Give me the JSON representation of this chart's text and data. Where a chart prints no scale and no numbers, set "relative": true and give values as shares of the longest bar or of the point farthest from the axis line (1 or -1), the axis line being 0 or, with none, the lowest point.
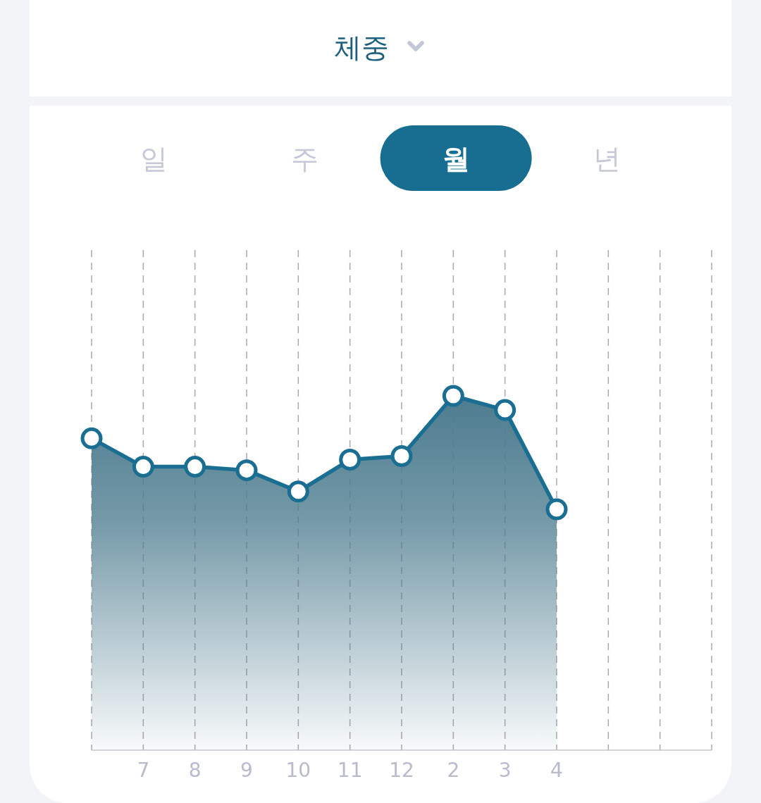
{
  "chart_data": {
    "type": "area",
    "title": "체중",
    "annotations": [
      "일",
      "주",
      "월",
      "년"
    ],
    "categories": [
      null,
      "7",
      "8",
      "9",
      "10",
      "11",
      "12",
      "2",
      "3",
      "4",
      null,
      null,
      null
    ],
    "relative": true,
    "series": [
      {
        "color": "#1a6e91",
        "values": [
          0.88,
          0.8,
          0.8,
          0.79,
          0.73,
          0.82,
          0.83,
          1,
          0.96,
          0.68,
          null,
          null,
          null
        ]
      }
    ],
    "grid": "x",
    "marker": "circle",
    "line_style": "solid"
  }
}
